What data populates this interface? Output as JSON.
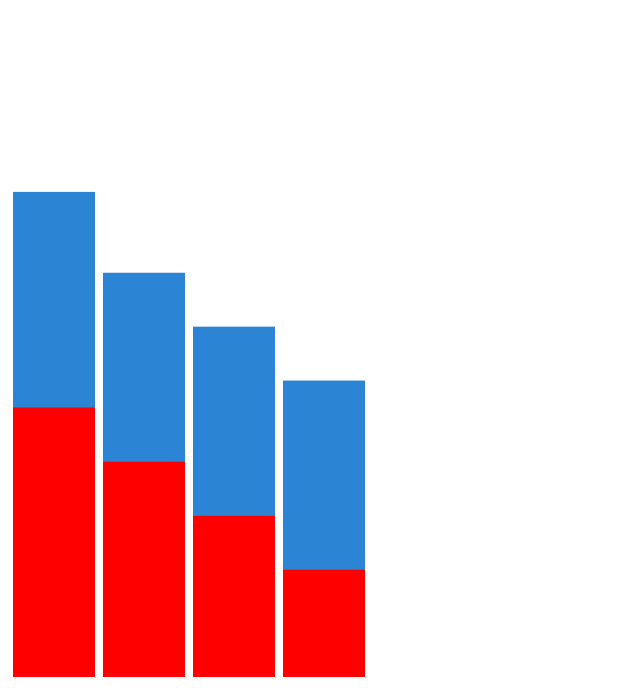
{
  "chart_data": {
    "type": "bar",
    "stacked": true,
    "categories": [
      "",
      "",
      "",
      ""
    ],
    "series": [
      {
        "values": [
          50,
          40,
          30,
          20
        ]
      },
      {
        "values": [
          40,
          35,
          35,
          35
        ]
      }
    ],
    "ylim": [
      0,
      90
    ],
    "grid": false,
    "axes_visible": false,
    "colors": [
      "#ff0000",
      "#2b84d4"
    ]
  }
}
